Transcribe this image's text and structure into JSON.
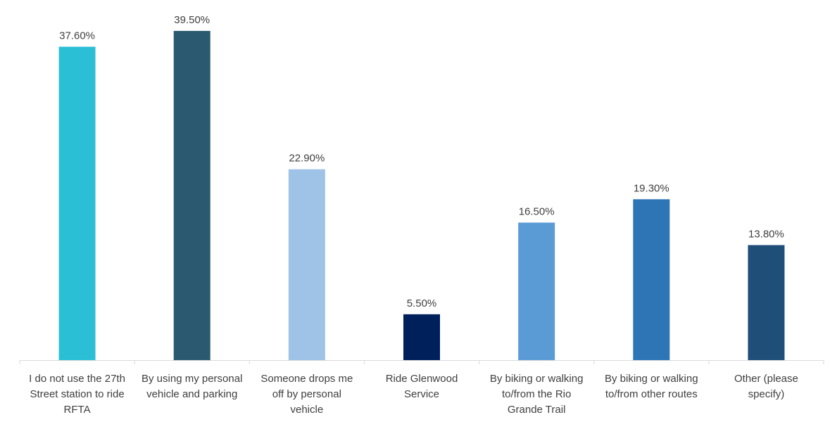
{
  "chart_data": {
    "type": "bar",
    "categories": [
      "I do not use the 27th Street station to ride RFTA",
      "By using my personal vehicle and parking",
      "Someone drops me off by personal vehicle",
      "Ride Glenwood Service",
      "By biking or walking to/from the Rio Grande Trail",
      "By biking or walking to/from other routes",
      "Other (please specify)"
    ],
    "category_lines": [
      [
        "I do not use the 27th",
        "Street station to ride",
        "RFTA"
      ],
      [
        "By using my personal",
        "vehicle and parking"
      ],
      [
        "Someone drops me",
        "off by personal",
        "vehicle"
      ],
      [
        "Ride Glenwood",
        "Service"
      ],
      [
        "By biking or walking",
        "to/from the Rio",
        "Grande Trail"
      ],
      [
        "By biking or walking",
        "to/from other routes"
      ],
      [
        "Other (please",
        "specify)"
      ]
    ],
    "values": [
      37.6,
      39.5,
      22.9,
      5.5,
      16.5,
      19.3,
      13.8
    ],
    "value_labels": [
      "37.60%",
      "39.50%",
      "22.90%",
      "5.50%",
      "16.50%",
      "19.30%",
      "13.80%"
    ],
    "colors": [
      "#2bbfd6",
      "#2b5a70",
      "#9fc3e6",
      "#00205b",
      "#5b9bd5",
      "#2e75b6",
      "#1f4e79"
    ],
    "title": "",
    "xlabel": "",
    "ylabel": "",
    "ylim": [
      0,
      40
    ],
    "grid": false,
    "legend": "none"
  }
}
